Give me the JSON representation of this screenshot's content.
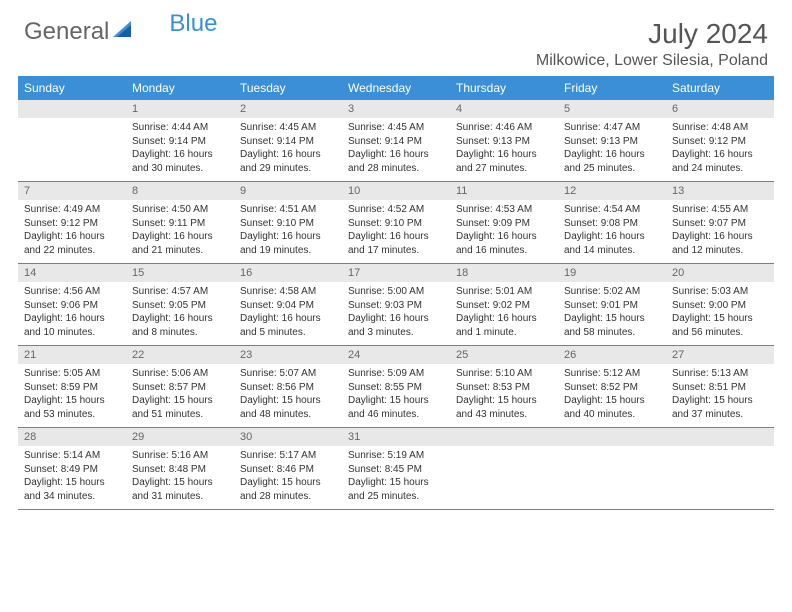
{
  "brand": {
    "part1": "General",
    "part2": "Blue"
  },
  "title": "July 2024",
  "location": "Milkowice, Lower Silesia, Poland",
  "colors": {
    "header_bg": "#3b8fd6",
    "daynum_bg": "#e8e8e8",
    "text": "#333333",
    "title": "#555555",
    "white": "#ffffff",
    "border": "#3b8fd6"
  },
  "day_labels": [
    "Sunday",
    "Monday",
    "Tuesday",
    "Wednesday",
    "Thursday",
    "Friday",
    "Saturday"
  ],
  "weeks": [
    [
      {
        "day": "",
        "sunrise": "",
        "sunset": "",
        "daylight": ""
      },
      {
        "day": "1",
        "sunrise": "Sunrise: 4:44 AM",
        "sunset": "Sunset: 9:14 PM",
        "daylight": "Daylight: 16 hours and 30 minutes."
      },
      {
        "day": "2",
        "sunrise": "Sunrise: 4:45 AM",
        "sunset": "Sunset: 9:14 PM",
        "daylight": "Daylight: 16 hours and 29 minutes."
      },
      {
        "day": "3",
        "sunrise": "Sunrise: 4:45 AM",
        "sunset": "Sunset: 9:14 PM",
        "daylight": "Daylight: 16 hours and 28 minutes."
      },
      {
        "day": "4",
        "sunrise": "Sunrise: 4:46 AM",
        "sunset": "Sunset: 9:13 PM",
        "daylight": "Daylight: 16 hours and 27 minutes."
      },
      {
        "day": "5",
        "sunrise": "Sunrise: 4:47 AM",
        "sunset": "Sunset: 9:13 PM",
        "daylight": "Daylight: 16 hours and 25 minutes."
      },
      {
        "day": "6",
        "sunrise": "Sunrise: 4:48 AM",
        "sunset": "Sunset: 9:12 PM",
        "daylight": "Daylight: 16 hours and 24 minutes."
      }
    ],
    [
      {
        "day": "7",
        "sunrise": "Sunrise: 4:49 AM",
        "sunset": "Sunset: 9:12 PM",
        "daylight": "Daylight: 16 hours and 22 minutes."
      },
      {
        "day": "8",
        "sunrise": "Sunrise: 4:50 AM",
        "sunset": "Sunset: 9:11 PM",
        "daylight": "Daylight: 16 hours and 21 minutes."
      },
      {
        "day": "9",
        "sunrise": "Sunrise: 4:51 AM",
        "sunset": "Sunset: 9:10 PM",
        "daylight": "Daylight: 16 hours and 19 minutes."
      },
      {
        "day": "10",
        "sunrise": "Sunrise: 4:52 AM",
        "sunset": "Sunset: 9:10 PM",
        "daylight": "Daylight: 16 hours and 17 minutes."
      },
      {
        "day": "11",
        "sunrise": "Sunrise: 4:53 AM",
        "sunset": "Sunset: 9:09 PM",
        "daylight": "Daylight: 16 hours and 16 minutes."
      },
      {
        "day": "12",
        "sunrise": "Sunrise: 4:54 AM",
        "sunset": "Sunset: 9:08 PM",
        "daylight": "Daylight: 16 hours and 14 minutes."
      },
      {
        "day": "13",
        "sunrise": "Sunrise: 4:55 AM",
        "sunset": "Sunset: 9:07 PM",
        "daylight": "Daylight: 16 hours and 12 minutes."
      }
    ],
    [
      {
        "day": "14",
        "sunrise": "Sunrise: 4:56 AM",
        "sunset": "Sunset: 9:06 PM",
        "daylight": "Daylight: 16 hours and 10 minutes."
      },
      {
        "day": "15",
        "sunrise": "Sunrise: 4:57 AM",
        "sunset": "Sunset: 9:05 PM",
        "daylight": "Daylight: 16 hours and 8 minutes."
      },
      {
        "day": "16",
        "sunrise": "Sunrise: 4:58 AM",
        "sunset": "Sunset: 9:04 PM",
        "daylight": "Daylight: 16 hours and 5 minutes."
      },
      {
        "day": "17",
        "sunrise": "Sunrise: 5:00 AM",
        "sunset": "Sunset: 9:03 PM",
        "daylight": "Daylight: 16 hours and 3 minutes."
      },
      {
        "day": "18",
        "sunrise": "Sunrise: 5:01 AM",
        "sunset": "Sunset: 9:02 PM",
        "daylight": "Daylight: 16 hours and 1 minute."
      },
      {
        "day": "19",
        "sunrise": "Sunrise: 5:02 AM",
        "sunset": "Sunset: 9:01 PM",
        "daylight": "Daylight: 15 hours and 58 minutes."
      },
      {
        "day": "20",
        "sunrise": "Sunrise: 5:03 AM",
        "sunset": "Sunset: 9:00 PM",
        "daylight": "Daylight: 15 hours and 56 minutes."
      }
    ],
    [
      {
        "day": "21",
        "sunrise": "Sunrise: 5:05 AM",
        "sunset": "Sunset: 8:59 PM",
        "daylight": "Daylight: 15 hours and 53 minutes."
      },
      {
        "day": "22",
        "sunrise": "Sunrise: 5:06 AM",
        "sunset": "Sunset: 8:57 PM",
        "daylight": "Daylight: 15 hours and 51 minutes."
      },
      {
        "day": "23",
        "sunrise": "Sunrise: 5:07 AM",
        "sunset": "Sunset: 8:56 PM",
        "daylight": "Daylight: 15 hours and 48 minutes."
      },
      {
        "day": "24",
        "sunrise": "Sunrise: 5:09 AM",
        "sunset": "Sunset: 8:55 PM",
        "daylight": "Daylight: 15 hours and 46 minutes."
      },
      {
        "day": "25",
        "sunrise": "Sunrise: 5:10 AM",
        "sunset": "Sunset: 8:53 PM",
        "daylight": "Daylight: 15 hours and 43 minutes."
      },
      {
        "day": "26",
        "sunrise": "Sunrise: 5:12 AM",
        "sunset": "Sunset: 8:52 PM",
        "daylight": "Daylight: 15 hours and 40 minutes."
      },
      {
        "day": "27",
        "sunrise": "Sunrise: 5:13 AM",
        "sunset": "Sunset: 8:51 PM",
        "daylight": "Daylight: 15 hours and 37 minutes."
      }
    ],
    [
      {
        "day": "28",
        "sunrise": "Sunrise: 5:14 AM",
        "sunset": "Sunset: 8:49 PM",
        "daylight": "Daylight: 15 hours and 34 minutes."
      },
      {
        "day": "29",
        "sunrise": "Sunrise: 5:16 AM",
        "sunset": "Sunset: 8:48 PM",
        "daylight": "Daylight: 15 hours and 31 minutes."
      },
      {
        "day": "30",
        "sunrise": "Sunrise: 5:17 AM",
        "sunset": "Sunset: 8:46 PM",
        "daylight": "Daylight: 15 hours and 28 minutes."
      },
      {
        "day": "31",
        "sunrise": "Sunrise: 5:19 AM",
        "sunset": "Sunset: 8:45 PM",
        "daylight": "Daylight: 15 hours and 25 minutes."
      },
      {
        "day": "",
        "sunrise": "",
        "sunset": "",
        "daylight": ""
      },
      {
        "day": "",
        "sunrise": "",
        "sunset": "",
        "daylight": ""
      },
      {
        "day": "",
        "sunrise": "",
        "sunset": "",
        "daylight": ""
      }
    ]
  ]
}
